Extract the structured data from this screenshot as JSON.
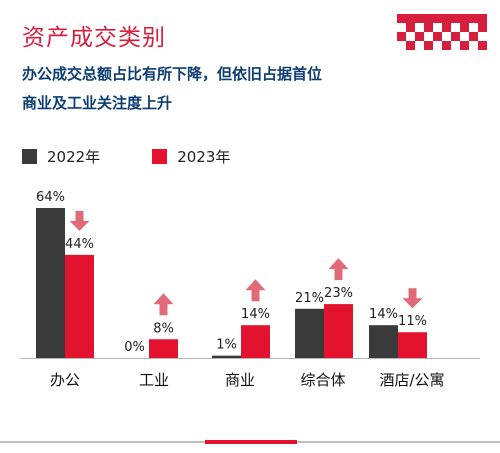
{
  "header": {
    "title": "资产成交类别",
    "subtitle_line1": "办公成交总额占比有所下降，但依旧占据首位",
    "subtitle_line2": "商业及工业关注度上升"
  },
  "colors": {
    "series_2022": "#3a3a3a",
    "series_2023": "#e3132f",
    "arrow": "#e06a78",
    "brand": "#d61f3c"
  },
  "chart_data": {
    "type": "bar",
    "categories": [
      "办公",
      "工业",
      "商业",
      "综合体",
      "酒店/公寓"
    ],
    "series": [
      {
        "name": "2022年",
        "values": [
          64,
          0,
          1,
          21,
          14
        ],
        "labels": [
          "64%",
          "0%",
          "1%",
          "21%",
          "14%"
        ]
      },
      {
        "name": "2023年",
        "values": [
          44,
          8,
          14,
          23,
          11
        ],
        "labels": [
          "44%",
          "8%",
          "14%",
          "23%",
          "11%"
        ]
      }
    ],
    "trend": [
      "down",
      "up",
      "up",
      "up",
      "down"
    ],
    "ylim": [
      0,
      64
    ],
    "legend_position": "top-left",
    "grid": false
  }
}
